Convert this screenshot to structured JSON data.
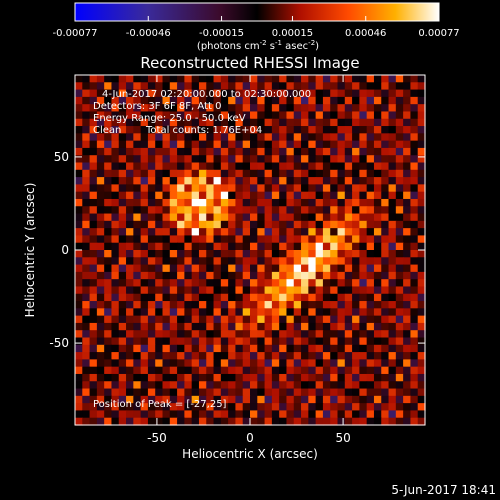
{
  "chart_data": {
    "type": "heatmap",
    "title": "Reconstructed RHESSI Image",
    "xlabel": "Heliocentric X (arcsec)",
    "ylabel": "Heliocentric Y (arcsec)",
    "xlim": [
      -94,
      94
    ],
    "ylim": [
      -94,
      94
    ],
    "x_ticks": [
      "-50",
      "0",
      "50"
    ],
    "x_tick_values": [
      -50,
      0,
      50
    ],
    "y_ticks": [
      "50",
      "0",
      "-50"
    ],
    "y_tick_values": [
      50,
      0,
      -50
    ],
    "colorbar": {
      "min": -0.00077,
      "max": 0.00077,
      "tick_labels": [
        "-0.00077",
        "-0.00046",
        "-0.00015",
        "0.00015",
        "0.00046",
        "0.00077"
      ],
      "tick_values": [
        -0.00077,
        -0.00046,
        -0.00015,
        0.00015,
        0.00046,
        0.00077
      ],
      "units_label": "(photons cm",
      "units_sup1": "-2",
      "units_mid": " s",
      "units_sup2": "-1",
      "units_end": " asec",
      "units_sup3": "-2",
      "units_close": ")"
    },
    "annotations": {
      "time_range": "4-Jun-2017 02:20:00.000 to 02:30:00.000",
      "detectors": "Detectors: 3F 6F 8F, Att 0",
      "energy": "Energy Range: 25.0 - 50.0 keV",
      "algorithm": "Clean",
      "counts": "Total counts: 1.76E+04",
      "peak": "Position of Peak = [-27,25]"
    },
    "sources": [
      {
        "x": -27,
        "y": 25,
        "peak": 0.00077,
        "description": "compact ring-like source"
      },
      {
        "x": 30,
        "y": -10,
        "peak": 0.0006,
        "description": "elongated diagonal source"
      }
    ],
    "timestamp": "5-Jun-2017 18:41"
  }
}
